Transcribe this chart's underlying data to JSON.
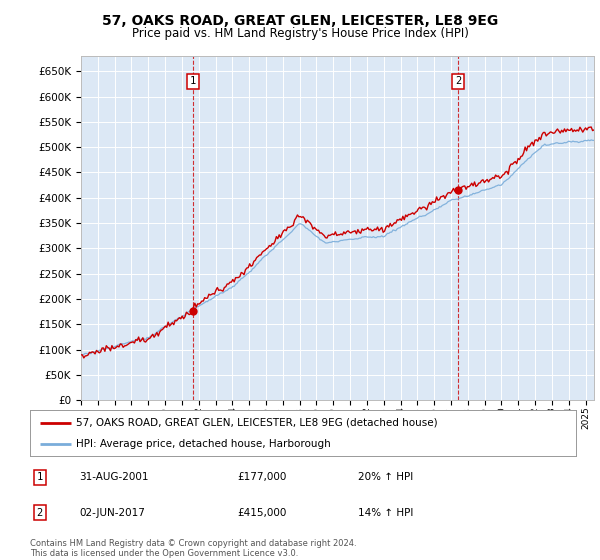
{
  "title": "57, OAKS ROAD, GREAT GLEN, LEICESTER, LE8 9EG",
  "subtitle": "Price paid vs. HM Land Registry's House Price Index (HPI)",
  "ylim": [
    0,
    680000
  ],
  "yticks": [
    0,
    50000,
    100000,
    150000,
    200000,
    250000,
    300000,
    350000,
    400000,
    450000,
    500000,
    550000,
    600000,
    650000
  ],
  "xlim_start": 1995.0,
  "xlim_end": 2025.5,
  "plot_bg": "#dce8f5",
  "sale1_date": 2001.667,
  "sale1_price": 177000,
  "sale2_date": 2017.417,
  "sale2_price": 415000,
  "legend_line1": "57, OAKS ROAD, GREAT GLEN, LEICESTER, LE8 9EG (detached house)",
  "legend_line2": "HPI: Average price, detached house, Harborough",
  "annotation1_num": "1",
  "annotation1_date": "31-AUG-2001",
  "annotation1_price": "£177,000",
  "annotation1_hpi": "20% ↑ HPI",
  "annotation2_num": "2",
  "annotation2_date": "02-JUN-2017",
  "annotation2_price": "£415,000",
  "annotation2_hpi": "14% ↑ HPI",
  "footer": "Contains HM Land Registry data © Crown copyright and database right 2024.\nThis data is licensed under the Open Government Licence v3.0.",
  "price_line_color": "#cc0000",
  "hpi_line_color": "#7aadda",
  "marker_color": "#cc0000"
}
